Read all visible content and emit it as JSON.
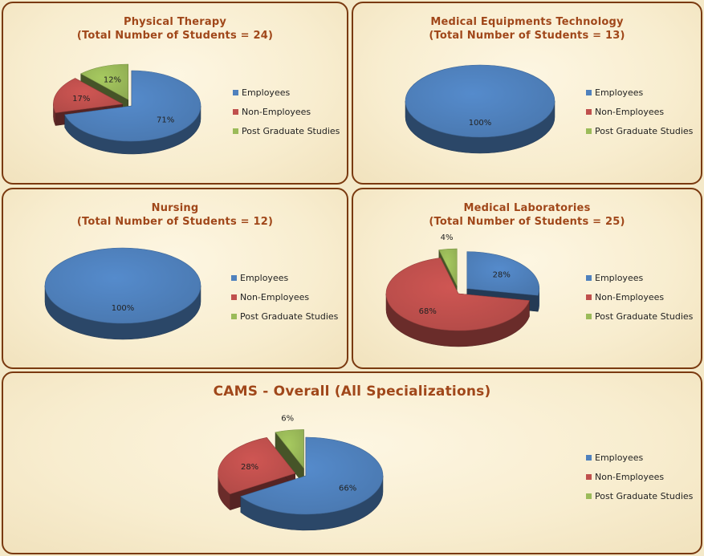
{
  "legend_labels": [
    "Employees",
    "Non-Employees",
    "Post Graduate Studies"
  ],
  "colors": {
    "employees": "#4f81bd",
    "non_employees": "#c0504d",
    "post_graduate": "#9bbb59",
    "title": "#a0471a",
    "border": "#7a3a10"
  },
  "chart_data": [
    {
      "type": "pie",
      "title": "Physical Therapy",
      "subtitle": "(Total Number of Students = 24)",
      "categories": [
        "Employees",
        "Non-Employees",
        "Post Graduate Studies"
      ],
      "values": [
        71,
        17,
        12
      ],
      "labels": [
        "71%",
        "17%",
        "12%"
      ],
      "exploded": [
        false,
        true,
        true
      ],
      "legend": "right"
    },
    {
      "type": "pie",
      "title": "Medical Equipments Technology",
      "subtitle": "(Total Number of Students = 13)",
      "categories": [
        "Employees",
        "Non-Employees",
        "Post Graduate Studies"
      ],
      "values": [
        100,
        0,
        0
      ],
      "labels": [
        "100%",
        "",
        ""
      ],
      "exploded": [
        false,
        false,
        false
      ],
      "legend": "right"
    },
    {
      "type": "pie",
      "title": "Nursing",
      "subtitle": "(Total Number of Students = 12)",
      "categories": [
        "Employees",
        "Non-Employees",
        "Post Graduate Studies"
      ],
      "values": [
        100,
        0,
        0
      ],
      "labels": [
        "100%",
        "",
        ""
      ],
      "exploded": [
        false,
        false,
        false
      ],
      "legend": "right"
    },
    {
      "type": "pie",
      "title": "Medical Laboratories",
      "subtitle": "(Total Number of Students = 25)",
      "categories": [
        "Employees",
        "Non-Employees",
        "Post Graduate Studies"
      ],
      "values": [
        28,
        68,
        4
      ],
      "labels": [
        "28%",
        "68%",
        "4%"
      ],
      "exploded": [
        true,
        false,
        true
      ],
      "legend": "right"
    },
    {
      "type": "pie",
      "title": "CAMS - Overall (All Specializations)",
      "subtitle": "",
      "categories": [
        "Employees",
        "Non-Employees",
        "Post Graduate Studies"
      ],
      "values": [
        66,
        28,
        6
      ],
      "labels": [
        "66%",
        "28%",
        "6%"
      ],
      "exploded": [
        false,
        true,
        true
      ],
      "legend": "right"
    }
  ]
}
